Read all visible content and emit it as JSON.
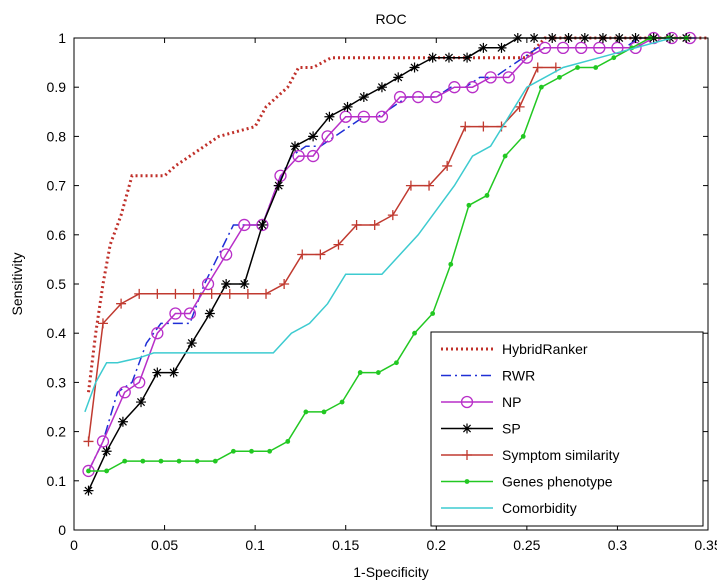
{
  "chart_data": {
    "type": "line",
    "title": "ROC",
    "xlabel": "1-Specificity",
    "ylabel": "Sensitivity",
    "xlim": [
      0,
      0.35
    ],
    "ylim": [
      0,
      1
    ],
    "xticks": [
      "0",
      "0.05",
      "0.1",
      "0.15",
      "0.2",
      "0.25",
      "0.3",
      "0.35"
    ],
    "yticks": [
      "0",
      "0.1",
      "0.2",
      "0.3",
      "0.4",
      "0.5",
      "0.6",
      "0.7",
      "0.8",
      "0.9",
      "1"
    ],
    "legend_position": "bottom-right",
    "grid": false,
    "series": [
      {
        "name": "HybridRanker",
        "color": "#c0302a",
        "dash": "dotted",
        "marker": "none",
        "x": [
          0.008,
          0.012,
          0.016,
          0.02,
          0.026,
          0.032,
          0.036,
          0.05,
          0.056,
          0.064,
          0.072,
          0.08,
          0.1,
          0.106,
          0.112,
          0.118,
          0.124,
          0.132,
          0.142,
          0.15,
          0.16,
          0.2,
          0.24,
          0.25,
          0.26,
          0.35
        ],
        "y": [
          0.28,
          0.4,
          0.5,
          0.58,
          0.64,
          0.72,
          0.72,
          0.72,
          0.74,
          0.76,
          0.78,
          0.8,
          0.82,
          0.86,
          0.88,
          0.9,
          0.94,
          0.94,
          0.96,
          0.96,
          0.96,
          0.96,
          0.96,
          0.96,
          1.0,
          1.0
        ]
      },
      {
        "name": "RWR",
        "color": "#1f2fd6",
        "dash": "dashdot",
        "marker": "none",
        "x": [
          0.008,
          0.016,
          0.024,
          0.032,
          0.04,
          0.048,
          0.056,
          0.064,
          0.072,
          0.08,
          0.088,
          0.096,
          0.104,
          0.112,
          0.12,
          0.128,
          0.136,
          0.144,
          0.152,
          0.16,
          0.168,
          0.176,
          0.184,
          0.192,
          0.2,
          0.208,
          0.216,
          0.224,
          0.232,
          0.24,
          0.248,
          0.256,
          0.264,
          0.272,
          0.28,
          0.288,
          0.296,
          0.304,
          0.312,
          0.32,
          0.328,
          0.336,
          0.344
        ],
        "y": [
          0.12,
          0.18,
          0.28,
          0.3,
          0.38,
          0.42,
          0.42,
          0.42,
          0.5,
          0.56,
          0.62,
          0.62,
          0.62,
          0.7,
          0.76,
          0.78,
          0.78,
          0.8,
          0.82,
          0.84,
          0.84,
          0.86,
          0.88,
          0.88,
          0.88,
          0.9,
          0.9,
          0.92,
          0.92,
          0.94,
          0.96,
          0.98,
          0.98,
          0.98,
          0.98,
          0.98,
          0.98,
          0.98,
          1.0,
          1.0,
          1.0,
          1.0,
          1.0
        ]
      },
      {
        "name": "NP",
        "color": "#b82fc8",
        "dash": "solid",
        "marker": "circle",
        "x": [
          0.008,
          0.016,
          0.028,
          0.036,
          0.046,
          0.056,
          0.064,
          0.074,
          0.084,
          0.094,
          0.104,
          0.114,
          0.124,
          0.132,
          0.14,
          0.15,
          0.16,
          0.17,
          0.18,
          0.19,
          0.2,
          0.21,
          0.22,
          0.23,
          0.24,
          0.25,
          0.26,
          0.27,
          0.28,
          0.29,
          0.3,
          0.31,
          0.32,
          0.33,
          0.34
        ],
        "y": [
          0.12,
          0.18,
          0.28,
          0.3,
          0.4,
          0.44,
          0.44,
          0.5,
          0.56,
          0.62,
          0.62,
          0.72,
          0.76,
          0.76,
          0.8,
          0.84,
          0.84,
          0.84,
          0.88,
          0.88,
          0.88,
          0.9,
          0.9,
          0.92,
          0.92,
          0.96,
          0.98,
          0.98,
          0.98,
          0.98,
          0.98,
          0.98,
          1.0,
          1.0,
          1.0
        ]
      },
      {
        "name": "SP",
        "color": "#000000",
        "dash": "solid",
        "marker": "star",
        "x": [
          0.008,
          0.018,
          0.027,
          0.037,
          0.046,
          0.055,
          0.065,
          0.075,
          0.084,
          0.094,
          0.104,
          0.113,
          0.122,
          0.132,
          0.141,
          0.151,
          0.16,
          0.17,
          0.179,
          0.188,
          0.198,
          0.207,
          0.217,
          0.226,
          0.236,
          0.245,
          0.254,
          0.264,
          0.273,
          0.282,
          0.292,
          0.301,
          0.31,
          0.32,
          0.329,
          0.338
        ],
        "y": [
          0.08,
          0.16,
          0.22,
          0.26,
          0.32,
          0.32,
          0.38,
          0.44,
          0.5,
          0.5,
          0.62,
          0.7,
          0.78,
          0.8,
          0.84,
          0.86,
          0.88,
          0.9,
          0.92,
          0.94,
          0.96,
          0.96,
          0.96,
          0.98,
          0.98,
          1.0,
          1.0,
          1.0,
          1.0,
          1.0,
          1.0,
          1.0,
          1.0,
          1.0,
          1.0,
          1.0
        ]
      },
      {
        "name": "Symptom similarity",
        "color": "#c03a30",
        "dash": "solid",
        "marker": "plus",
        "x": [
          0.008,
          0.016,
          0.026,
          0.036,
          0.046,
          0.056,
          0.066,
          0.076,
          0.086,
          0.096,
          0.106,
          0.116,
          0.126,
          0.136,
          0.146,
          0.156,
          0.166,
          0.176,
          0.186,
          0.196,
          0.206,
          0.216,
          0.226,
          0.236,
          0.246,
          0.256,
          0.266
        ],
        "y": [
          0.18,
          0.42,
          0.46,
          0.48,
          0.48,
          0.48,
          0.48,
          0.48,
          0.48,
          0.48,
          0.48,
          0.5,
          0.56,
          0.56,
          0.58,
          0.62,
          0.62,
          0.64,
          0.7,
          0.7,
          0.74,
          0.82,
          0.82,
          0.82,
          0.86,
          0.94,
          0.94
        ]
      },
      {
        "name": "Genes phenotype",
        "color": "#22c822",
        "dash": "solid",
        "marker": "dot",
        "x": [
          0.008,
          0.018,
          0.028,
          0.038,
          0.048,
          0.058,
          0.068,
          0.078,
          0.088,
          0.098,
          0.108,
          0.118,
          0.128,
          0.138,
          0.148,
          0.158,
          0.168,
          0.178,
          0.188,
          0.198,
          0.208,
          0.218,
          0.228,
          0.238,
          0.248,
          0.258,
          0.268,
          0.278,
          0.288,
          0.298,
          0.308,
          0.318,
          0.328,
          0.338
        ],
        "y": [
          0.12,
          0.12,
          0.14,
          0.14,
          0.14,
          0.14,
          0.14,
          0.14,
          0.16,
          0.16,
          0.16,
          0.18,
          0.24,
          0.24,
          0.26,
          0.32,
          0.32,
          0.34,
          0.4,
          0.44,
          0.54,
          0.66,
          0.68,
          0.76,
          0.8,
          0.9,
          0.92,
          0.94,
          0.94,
          0.96,
          0.98,
          1.0,
          1.0,
          1.0
        ]
      },
      {
        "name": "Comorbidity",
        "color": "#3dcbd0",
        "dash": "solid",
        "marker": "none",
        "x": [
          0.006,
          0.012,
          0.018,
          0.024,
          0.036,
          0.044,
          0.05,
          0.09,
          0.11,
          0.12,
          0.13,
          0.14,
          0.15,
          0.17,
          0.19,
          0.21,
          0.22,
          0.23,
          0.25,
          0.27,
          0.29,
          0.31,
          0.33
        ],
        "y": [
          0.24,
          0.3,
          0.34,
          0.34,
          0.35,
          0.36,
          0.36,
          0.36,
          0.36,
          0.4,
          0.42,
          0.46,
          0.52,
          0.52,
          0.6,
          0.7,
          0.76,
          0.78,
          0.9,
          0.94,
          0.96,
          0.98,
          1.0
        ]
      }
    ]
  }
}
